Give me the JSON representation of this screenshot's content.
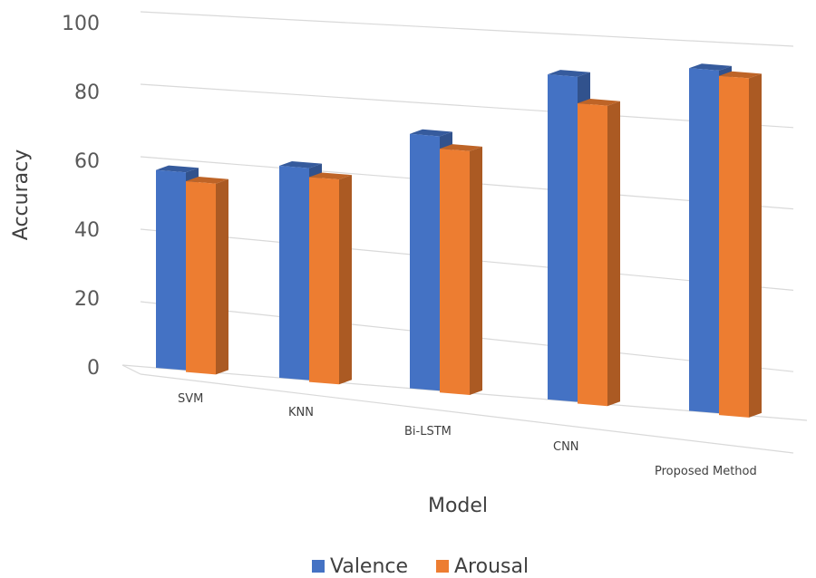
{
  "chart_data": {
    "type": "bar",
    "title": "",
    "xlabel": "Model",
    "ylabel": "Accuracy",
    "ylim": [
      0,
      100
    ],
    "yticks": [
      0,
      20,
      40,
      60,
      80,
      100
    ],
    "categories": [
      "SVM",
      "KNN",
      "Bi-LSTM",
      "CNN",
      "Proposed Method"
    ],
    "series": [
      {
        "name": "Valence",
        "color": "#4472C4",
        "values": [
          56,
          60,
          72,
          92,
          97
        ]
      },
      {
        "name": "Arousal",
        "color": "#ED7D31",
        "values": [
          54,
          58,
          69,
          85,
          96
        ]
      }
    ],
    "grid": true,
    "legend": "bottom",
    "style": "3d-clustered-column"
  }
}
